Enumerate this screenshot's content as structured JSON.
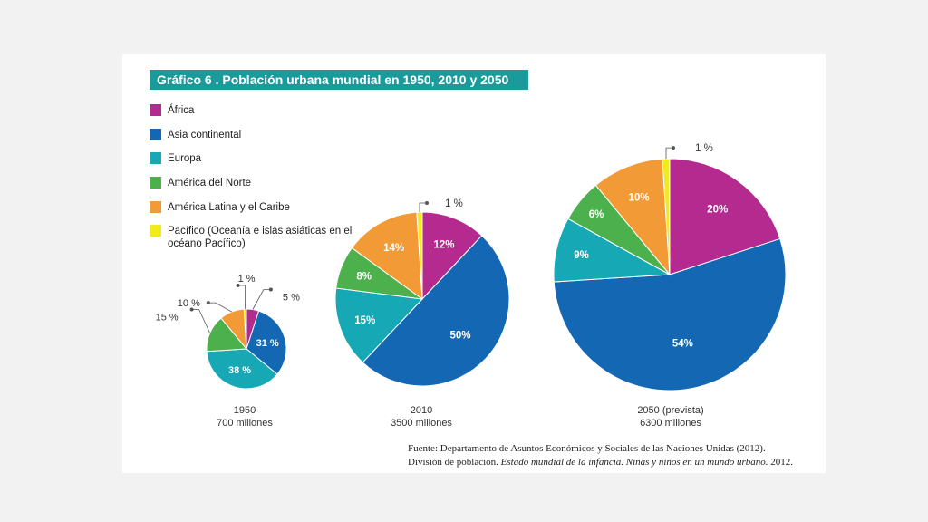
{
  "title": "Gráfico 6 . Población urbana mundial en 1950, 2010 y 2050",
  "legend": [
    {
      "label": "África",
      "color": "#b52a8f"
    },
    {
      "label": "Asia continental",
      "color": "#1468b3"
    },
    {
      "label": "Europa",
      "color": "#16a8b5"
    },
    {
      "label": "América del Norte",
      "color": "#4cb04c"
    },
    {
      "label": "América Latina y el Caribe",
      "color": "#f29a36"
    },
    {
      "label": "Pacífico (Oceanía e islas asiáticas en el océano Pacífico)",
      "color": "#f2ea1a"
    }
  ],
  "chart_data": [
    {
      "type": "pie",
      "caption_year": "1950",
      "caption_value": "700 millones",
      "categories": [
        "África",
        "Asia continental",
        "Europa",
        "América del Norte",
        "América Latina y el Caribe",
        "Pacífico (Oceanía e islas asiáticas en el océano Pacífico)"
      ],
      "values": [
        5,
        31,
        38,
        15,
        10,
        1
      ],
      "labels": [
        "5 %",
        "31 %",
        "38 %",
        "15 %",
        "10 %",
        "1 %"
      ]
    },
    {
      "type": "pie",
      "caption_year": "2010",
      "caption_value": "3500 millones",
      "categories": [
        "África",
        "Asia continental",
        "Europa",
        "América del Norte",
        "América Latina y el Caribe",
        "Pacífico (Oceanía e islas asiáticas en el océano Pacífico)"
      ],
      "values": [
        12,
        50,
        15,
        8,
        14,
        1
      ],
      "labels": [
        "12%",
        "50%",
        "15%",
        "8%",
        "14%",
        "1 %"
      ]
    },
    {
      "type": "pie",
      "caption_year": "2050 (prevista)",
      "caption_value": "6300 millones",
      "categories": [
        "África",
        "Asia continental",
        "Europa",
        "América del Norte",
        "América Latina y el Caribe",
        "Pacífico (Oceanía e islas asiáticas en el océano Pacífico)"
      ],
      "values": [
        20,
        54,
        9,
        6,
        10,
        1
      ],
      "labels": [
        "20%",
        "54%",
        "9%",
        "6%",
        "10%",
        "1 %"
      ]
    }
  ],
  "source": {
    "line1": "Fuente: Departamento de Asuntos Económicos y Sociales de las Naciones Unidas (2012).",
    "line2_a": "División de población. ",
    "line2_b": "Estado mundial de la infancia. Niñas y niños en un mundo urbano.",
    "line2_c": " 2012."
  }
}
